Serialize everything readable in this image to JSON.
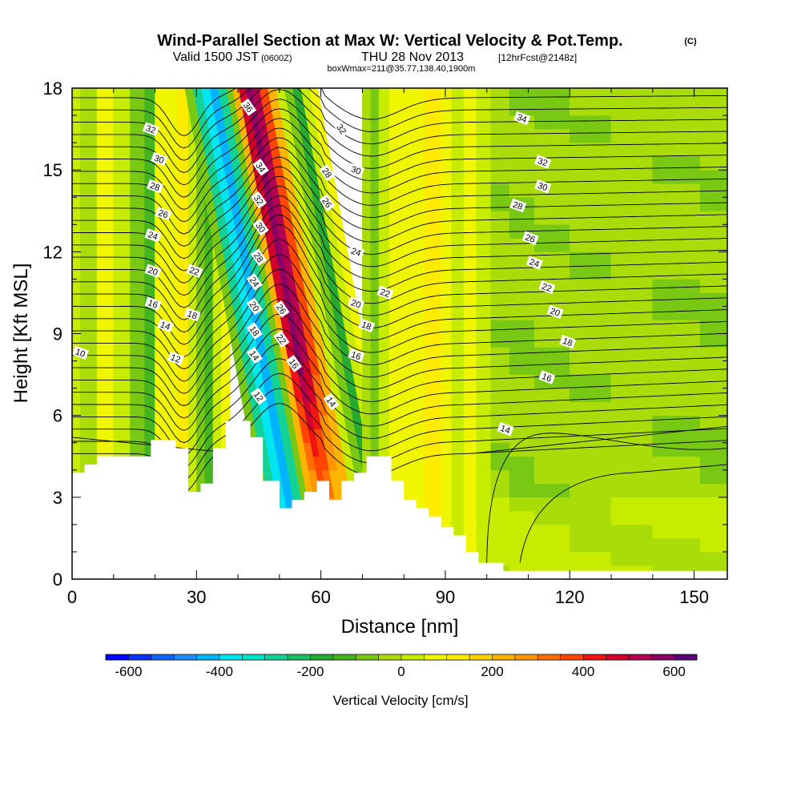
{
  "header": {
    "title_main": "Wind-Parallel Section at Max W: Vertical Velocity & Pot.Temp.",
    "title_mark": "(C)",
    "valid_prefix": "Valid 1500 JST",
    "valid_small": "(0600Z)",
    "valid_date": "THU 28 Nov 2013",
    "valid_fcst": "[12hrFcst@2148z]",
    "box_info": "boxWmax=211@35.77,138.40,1900m"
  },
  "chart_data": {
    "type": "heatmap",
    "title": "Wind-Parallel Section at Max W: Vertical Velocity & Pot.Temp.",
    "xlabel": "Distance [nm]",
    "ylabel": "Height [Kft MSL]",
    "xlim": [
      0,
      158
    ],
    "ylim": [
      0,
      18
    ],
    "xticks": [
      0,
      30,
      60,
      90,
      120,
      150
    ],
    "yticks": [
      0,
      3,
      6,
      9,
      12,
      15,
      18
    ],
    "x_tick_labels": [
      "0",
      "30",
      "60",
      "90",
      "120",
      "150"
    ],
    "y_tick_labels": [
      "0",
      "3",
      "6",
      "9",
      "12",
      "15",
      "18"
    ],
    "colorbar": {
      "label": "Vertical Velocity [cm/s]",
      "range": [
        -650,
        650
      ],
      "step": 50,
      "tick_values": [
        -600,
        -400,
        -200,
        0,
        200,
        400,
        600
      ],
      "tick_labels": [
        "-600",
        "-400",
        "-200",
        "0",
        "200",
        "400",
        "600"
      ],
      "colors": [
        "#0000ff",
        "#0a32ff",
        "#1464ff",
        "#1e8cff",
        "#00b4ff",
        "#00e6f0",
        "#00e6c8",
        "#14d296",
        "#1ebe64",
        "#28aa32",
        "#46b41e",
        "#78c814",
        "#aadc0a",
        "#c8ec00",
        "#f0f500",
        "#ffeb00",
        "#ffd200",
        "#ffb400",
        "#ff9600",
        "#ff6e00",
        "#ff4600",
        "#f01414",
        "#d2002d",
        "#b40050",
        "#8c0064",
        "#5a0078"
      ]
    },
    "w_columns": [
      {
        "x": 0,
        "w": 30
      },
      {
        "x": 4,
        "w": -20
      },
      {
        "x": 8,
        "w": 60
      },
      {
        "x": 12,
        "w": 20
      },
      {
        "x": 16,
        "w": -60
      },
      {
        "x": 19,
        "w": -120
      },
      {
        "x": 21,
        "w": 50
      },
      {
        "x": 24,
        "w": 80
      },
      {
        "x": 27,
        "w": 120
      },
      {
        "x": 29,
        "w": 40
      },
      {
        "x": 31,
        "w": -80
      },
      {
        "x": 33,
        "w": -140
      },
      {
        "x": 35,
        "w": 40
      },
      {
        "x": 37,
        "w": 60
      },
      {
        "x": 39,
        "w": -100
      },
      {
        "x": 41,
        "w": -260
      },
      {
        "x": 43,
        "w": -380
      },
      {
        "x": 45,
        "w": -450
      },
      {
        "x": 47,
        "w": -300
      },
      {
        "x": 49,
        "w": -100
      },
      {
        "x": 50,
        "w": 200
      },
      {
        "x": 52,
        "w": 450
      },
      {
        "x": 53.5,
        "w": 560
      },
      {
        "x": 55,
        "w": 500
      },
      {
        "x": 57,
        "w": 360
      },
      {
        "x": 59,
        "w": 200
      },
      {
        "x": 61,
        "w": 40
      },
      {
        "x": 63,
        "w": -100
      },
      {
        "x": 65,
        "w": -160
      },
      {
        "x": 67,
        "w": 20
      },
      {
        "x": 69,
        "w": 60
      },
      {
        "x": 71,
        "w": -40
      },
      {
        "x": 73,
        "w": -100
      },
      {
        "x": 75,
        "w": 20
      },
      {
        "x": 78,
        "w": 70
      },
      {
        "x": 81,
        "w": 90
      },
      {
        "x": 84,
        "w": 60
      },
      {
        "x": 86,
        "w": 110
      },
      {
        "x": 88,
        "w": 140
      },
      {
        "x": 90,
        "w": 80
      },
      {
        "x": 93,
        "w": 30
      },
      {
        "x": 96,
        "w": 60
      },
      {
        "x": 99,
        "w": 20
      },
      {
        "x": 103,
        "w": -30
      },
      {
        "x": 108,
        "w": -40
      },
      {
        "x": 115,
        "w": -35
      },
      {
        "x": 125,
        "w": -30
      },
      {
        "x": 135,
        "w": -25
      },
      {
        "x": 145,
        "w": -35
      },
      {
        "x": 158,
        "w": -40
      }
    ],
    "terrain": [
      [
        0,
        3.9
      ],
      [
        3,
        3.9
      ],
      [
        3,
        4.2
      ],
      [
        6,
        4.2
      ],
      [
        6,
        4.5
      ],
      [
        19,
        4.5
      ],
      [
        19,
        5.1
      ],
      [
        25,
        5.1
      ],
      [
        25,
        4.8
      ],
      [
        28,
        4.8
      ],
      [
        28,
        3.2
      ],
      [
        31,
        3.2
      ],
      [
        31,
        3.5
      ],
      [
        34,
        3.5
      ],
      [
        34,
        4.8
      ],
      [
        37,
        4.8
      ],
      [
        37,
        5.8
      ],
      [
        43,
        5.8
      ],
      [
        43,
        5.2
      ],
      [
        46,
        5.2
      ],
      [
        46,
        3.6
      ],
      [
        49,
        3.6
      ],
      [
        49,
        3.6
      ],
      [
        50,
        3.6
      ],
      [
        50,
        2.6
      ],
      [
        53,
        2.6
      ],
      [
        53,
        2.9
      ],
      [
        56,
        2.9
      ],
      [
        56,
        3.2
      ],
      [
        59,
        3.2
      ],
      [
        59,
        3.6
      ],
      [
        62,
        3.6
      ],
      [
        62,
        2.9
      ],
      [
        65,
        2.9
      ],
      [
        65,
        3.6
      ],
      [
        68,
        3.6
      ],
      [
        68,
        3.9
      ],
      [
        71,
        3.9
      ],
      [
        71,
        4.5
      ],
      [
        77,
        4.5
      ],
      [
        77,
        3.6
      ],
      [
        80,
        3.6
      ],
      [
        80,
        2.9
      ],
      [
        83,
        2.9
      ],
      [
        83,
        2.6
      ],
      [
        86,
        2.6
      ],
      [
        86,
        2.3
      ],
      [
        89,
        2.3
      ],
      [
        89,
        1.9
      ],
      [
        92,
        1.9
      ],
      [
        92,
        1.6
      ],
      [
        95,
        1.6
      ],
      [
        95,
        1.0
      ],
      [
        98,
        1.0
      ],
      [
        98,
        0.6
      ],
      [
        104,
        0.6
      ],
      [
        104,
        0.3
      ],
      [
        158,
        0.3
      ]
    ],
    "contour_labels": [
      {
        "x": 2,
        "y": 8.3,
        "text": "10"
      },
      {
        "x": 19,
        "y": 16.5,
        "text": "32"
      },
      {
        "x": 21,
        "y": 15.4,
        "text": "30"
      },
      {
        "x": 20,
        "y": 14.4,
        "text": "28"
      },
      {
        "x": 22,
        "y": 13.4,
        "text": "26"
      },
      {
        "x": 19.5,
        "y": 12.6,
        "text": "24"
      },
      {
        "x": 19.5,
        "y": 11.3,
        "text": "20"
      },
      {
        "x": 19.5,
        "y": 10.1,
        "text": "16"
      },
      {
        "x": 22.5,
        "y": 9.3,
        "text": "14"
      },
      {
        "x": 25,
        "y": 8.1,
        "text": "12"
      },
      {
        "x": 29.5,
        "y": 11.3,
        "text": "22"
      },
      {
        "x": 29,
        "y": 9.7,
        "text": "18"
      },
      {
        "x": 42.5,
        "y": 17.3,
        "text": "36"
      },
      {
        "x": 45.5,
        "y": 15.1,
        "text": "34"
      },
      {
        "x": 45,
        "y": 13.9,
        "text": "32"
      },
      {
        "x": 45.5,
        "y": 12.9,
        "text": "30"
      },
      {
        "x": 45,
        "y": 11.8,
        "text": "28"
      },
      {
        "x": 44,
        "y": 10.9,
        "text": "24"
      },
      {
        "x": 44,
        "y": 10.0,
        "text": "20"
      },
      {
        "x": 44,
        "y": 9.1,
        "text": "18"
      },
      {
        "x": 44,
        "y": 8.2,
        "text": "14"
      },
      {
        "x": 45,
        "y": 6.7,
        "text": "12"
      },
      {
        "x": 50.5,
        "y": 9.9,
        "text": "26"
      },
      {
        "x": 50.5,
        "y": 8.8,
        "text": "22"
      },
      {
        "x": 53.5,
        "y": 7.9,
        "text": "16"
      },
      {
        "x": 65,
        "y": 16.5,
        "text": "32"
      },
      {
        "x": 61.5,
        "y": 14.9,
        "text": "28"
      },
      {
        "x": 61.5,
        "y": 13.8,
        "text": "26"
      },
      {
        "x": 68.5,
        "y": 15.0,
        "text": "30"
      },
      {
        "x": 68.5,
        "y": 12.0,
        "text": "24"
      },
      {
        "x": 75.5,
        "y": 10.5,
        "text": "22"
      },
      {
        "x": 68.5,
        "y": 10.1,
        "text": "20"
      },
      {
        "x": 71,
        "y": 9.3,
        "text": "18"
      },
      {
        "x": 68.5,
        "y": 8.2,
        "text": "16"
      },
      {
        "x": 62.5,
        "y": 6.5,
        "text": "14"
      },
      {
        "x": 108.5,
        "y": 16.9,
        "text": "34"
      },
      {
        "x": 113.5,
        "y": 15.3,
        "text": "32"
      },
      {
        "x": 113.5,
        "y": 14.4,
        "text": "30"
      },
      {
        "x": 107.5,
        "y": 13.7,
        "text": "28"
      },
      {
        "x": 110.5,
        "y": 12.5,
        "text": "26"
      },
      {
        "x": 111.5,
        "y": 11.6,
        "text": "24"
      },
      {
        "x": 114.5,
        "y": 10.7,
        "text": "22"
      },
      {
        "x": 116.5,
        "y": 9.8,
        "text": "20"
      },
      {
        "x": 119.5,
        "y": 8.7,
        "text": "18"
      },
      {
        "x": 114.5,
        "y": 7.4,
        "text": "16"
      },
      {
        "x": 104.5,
        "y": 5.5,
        "text": "14"
      }
    ]
  }
}
